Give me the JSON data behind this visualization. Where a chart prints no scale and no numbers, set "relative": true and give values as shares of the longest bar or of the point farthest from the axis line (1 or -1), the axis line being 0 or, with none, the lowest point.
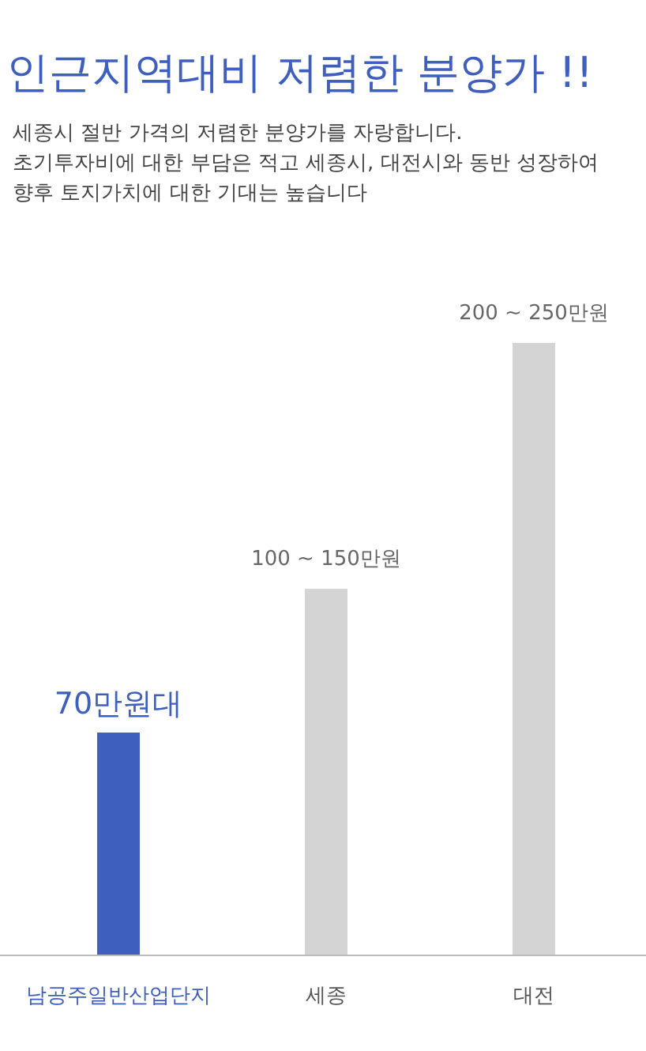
{
  "chart_data": {
    "type": "bar",
    "title": "인근지역대비 저렴한 분양가 !!",
    "subtitle": "세종시 절반 가격의 저렴한 분양가를 자랑합니다.\n초기투자비에 대한 부담은 적고 세종시, 대전시와 동반 성장하여\n향후 토지가치에 대한 기대는 높습니다",
    "categories": [
      "남공주일반산업단지",
      "세종",
      "대전"
    ],
    "values": [
      0.363,
      0.598,
      1
    ],
    "colors": [
      "#3f5fbe",
      "#d4d4d4",
      "#d4d4d4"
    ],
    "annotations": [
      {
        "text": "70만원대",
        "x": "남공주일반산업단지",
        "y": 0.363
      },
      {
        "text": "100 ~ 150만원",
        "x": "세종",
        "y": 0.598
      },
      {
        "text": "200 ~ 250만원",
        "x": "대전",
        "y": 1
      }
    ],
    "relative": true
  }
}
